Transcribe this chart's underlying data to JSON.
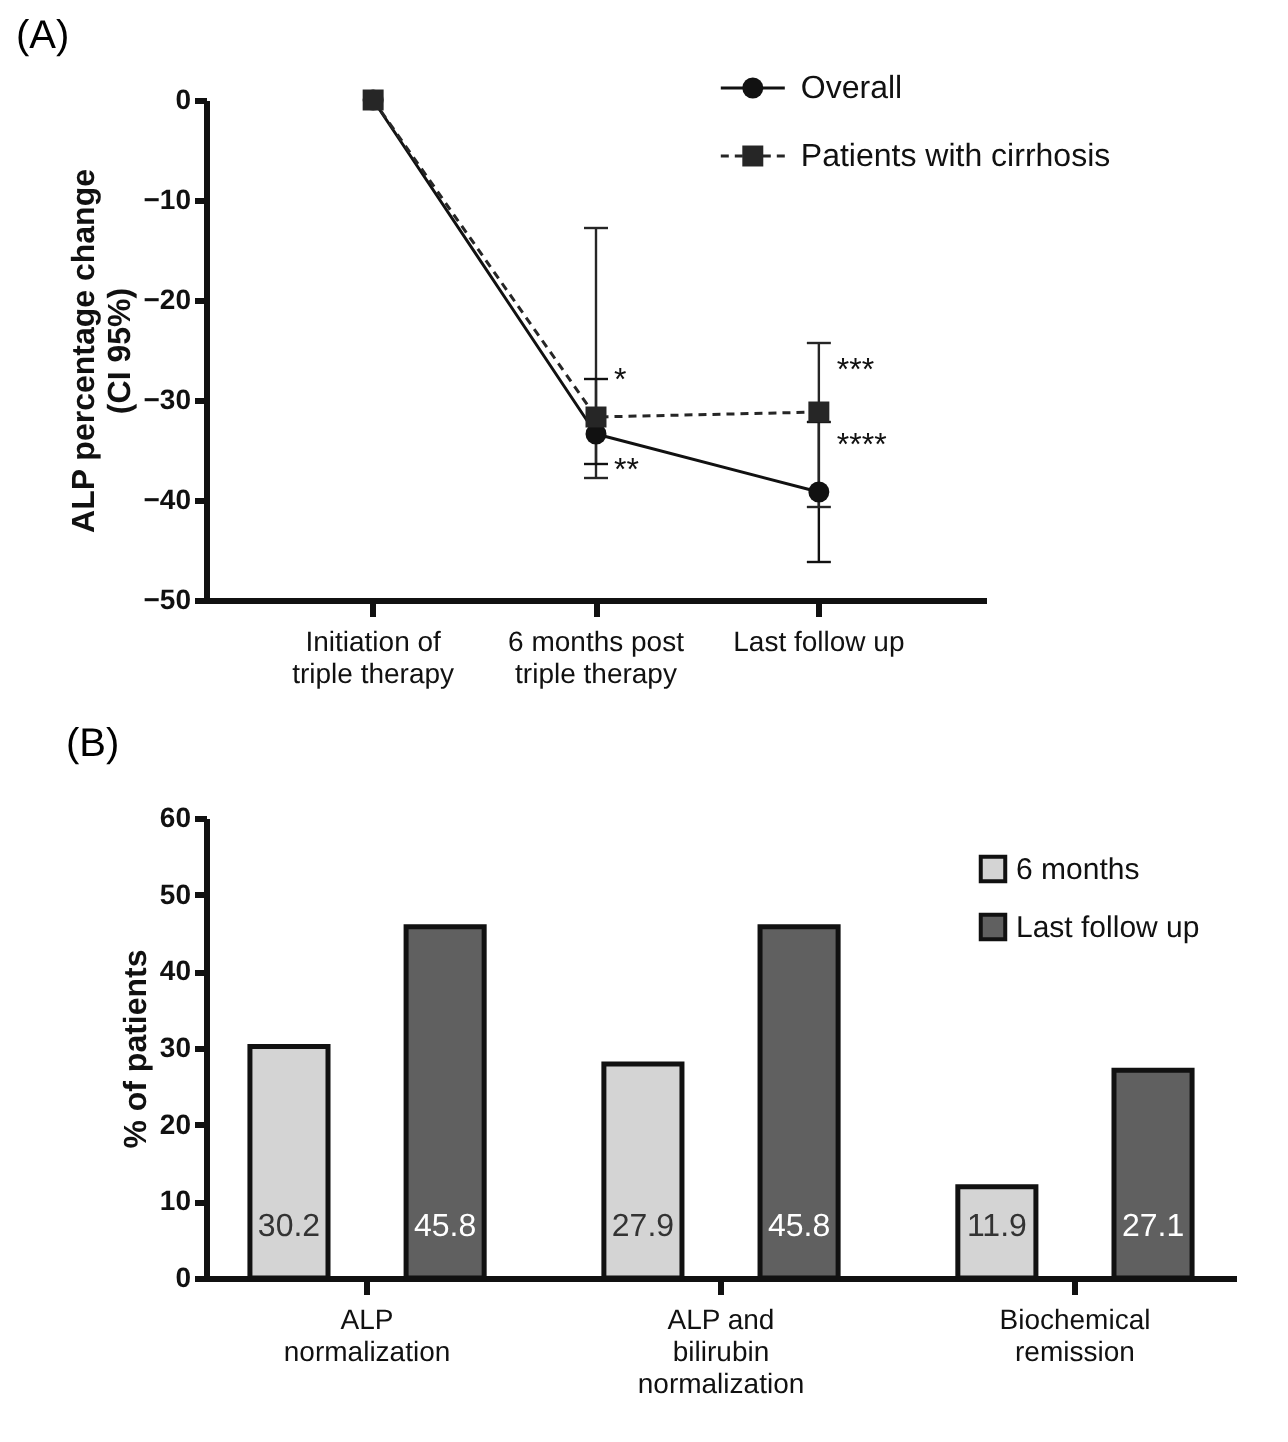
{
  "chart_data": [
    {
      "type": "line",
      "title": "(A)",
      "ylabel": "ALP percentage change\n(CI 95%)",
      "categories": [
        "Initiation of triple therapy",
        "6 months post triple therapy",
        "Last follow up"
      ],
      "series": [
        {
          "name": "Overall",
          "color": "#111111",
          "values": [
            0,
            -33.4,
            -39.2
          ],
          "errors": [
            null,
            [
              -36.4,
              -27.9
            ],
            [
              -46.2,
              -32.2
            ]
          ],
          "marker": "circle",
          "line_style": "solid"
        },
        {
          "name": "Patients with cirrhosis",
          "color": "#262626",
          "values": [
            0,
            -31.7,
            -31.2
          ],
          "errors": [
            null,
            [
              -37.8,
              -12.8
            ],
            [
              -40.7,
              -24.3
            ]
          ],
          "marker": "square",
          "line_style": "dashed"
        }
      ],
      "ylim": [
        -50,
        0
      ],
      "yticks": [
        -50,
        -40,
        -30,
        -20,
        -10,
        0
      ],
      "grid": false,
      "legend": "top right",
      "annotations": [
        {
          "text": "*",
          "x": "6 months post triple therapy",
          "y": -28
        },
        {
          "text": "**",
          "x": "6 months post triple therapy",
          "y": -37
        },
        {
          "text": "***",
          "x": "Last follow up",
          "y": -27
        },
        {
          "text": "****",
          "x": "Last follow up",
          "y": -34.5
        }
      ]
    },
    {
      "type": "bar",
      "title": "(B)",
      "ylabel": "% of patients",
      "categories": [
        "ALP normalization",
        "ALP and bilirubin normalization",
        "Biochemical remission"
      ],
      "series": [
        {
          "name": "6 months",
          "color": "#d4d4d4",
          "values": [
            30.2,
            27.9,
            11.9
          ]
        },
        {
          "name": "Last follow up",
          "color": "#606060",
          "values": [
            45.8,
            45.8,
            27.1
          ]
        }
      ],
      "ylim": [
        0,
        60
      ],
      "yticks": [
        0,
        10,
        20,
        30,
        40,
        50,
        60
      ],
      "grid": false,
      "legend": "top right",
      "data_labels": true
    }
  ]
}
